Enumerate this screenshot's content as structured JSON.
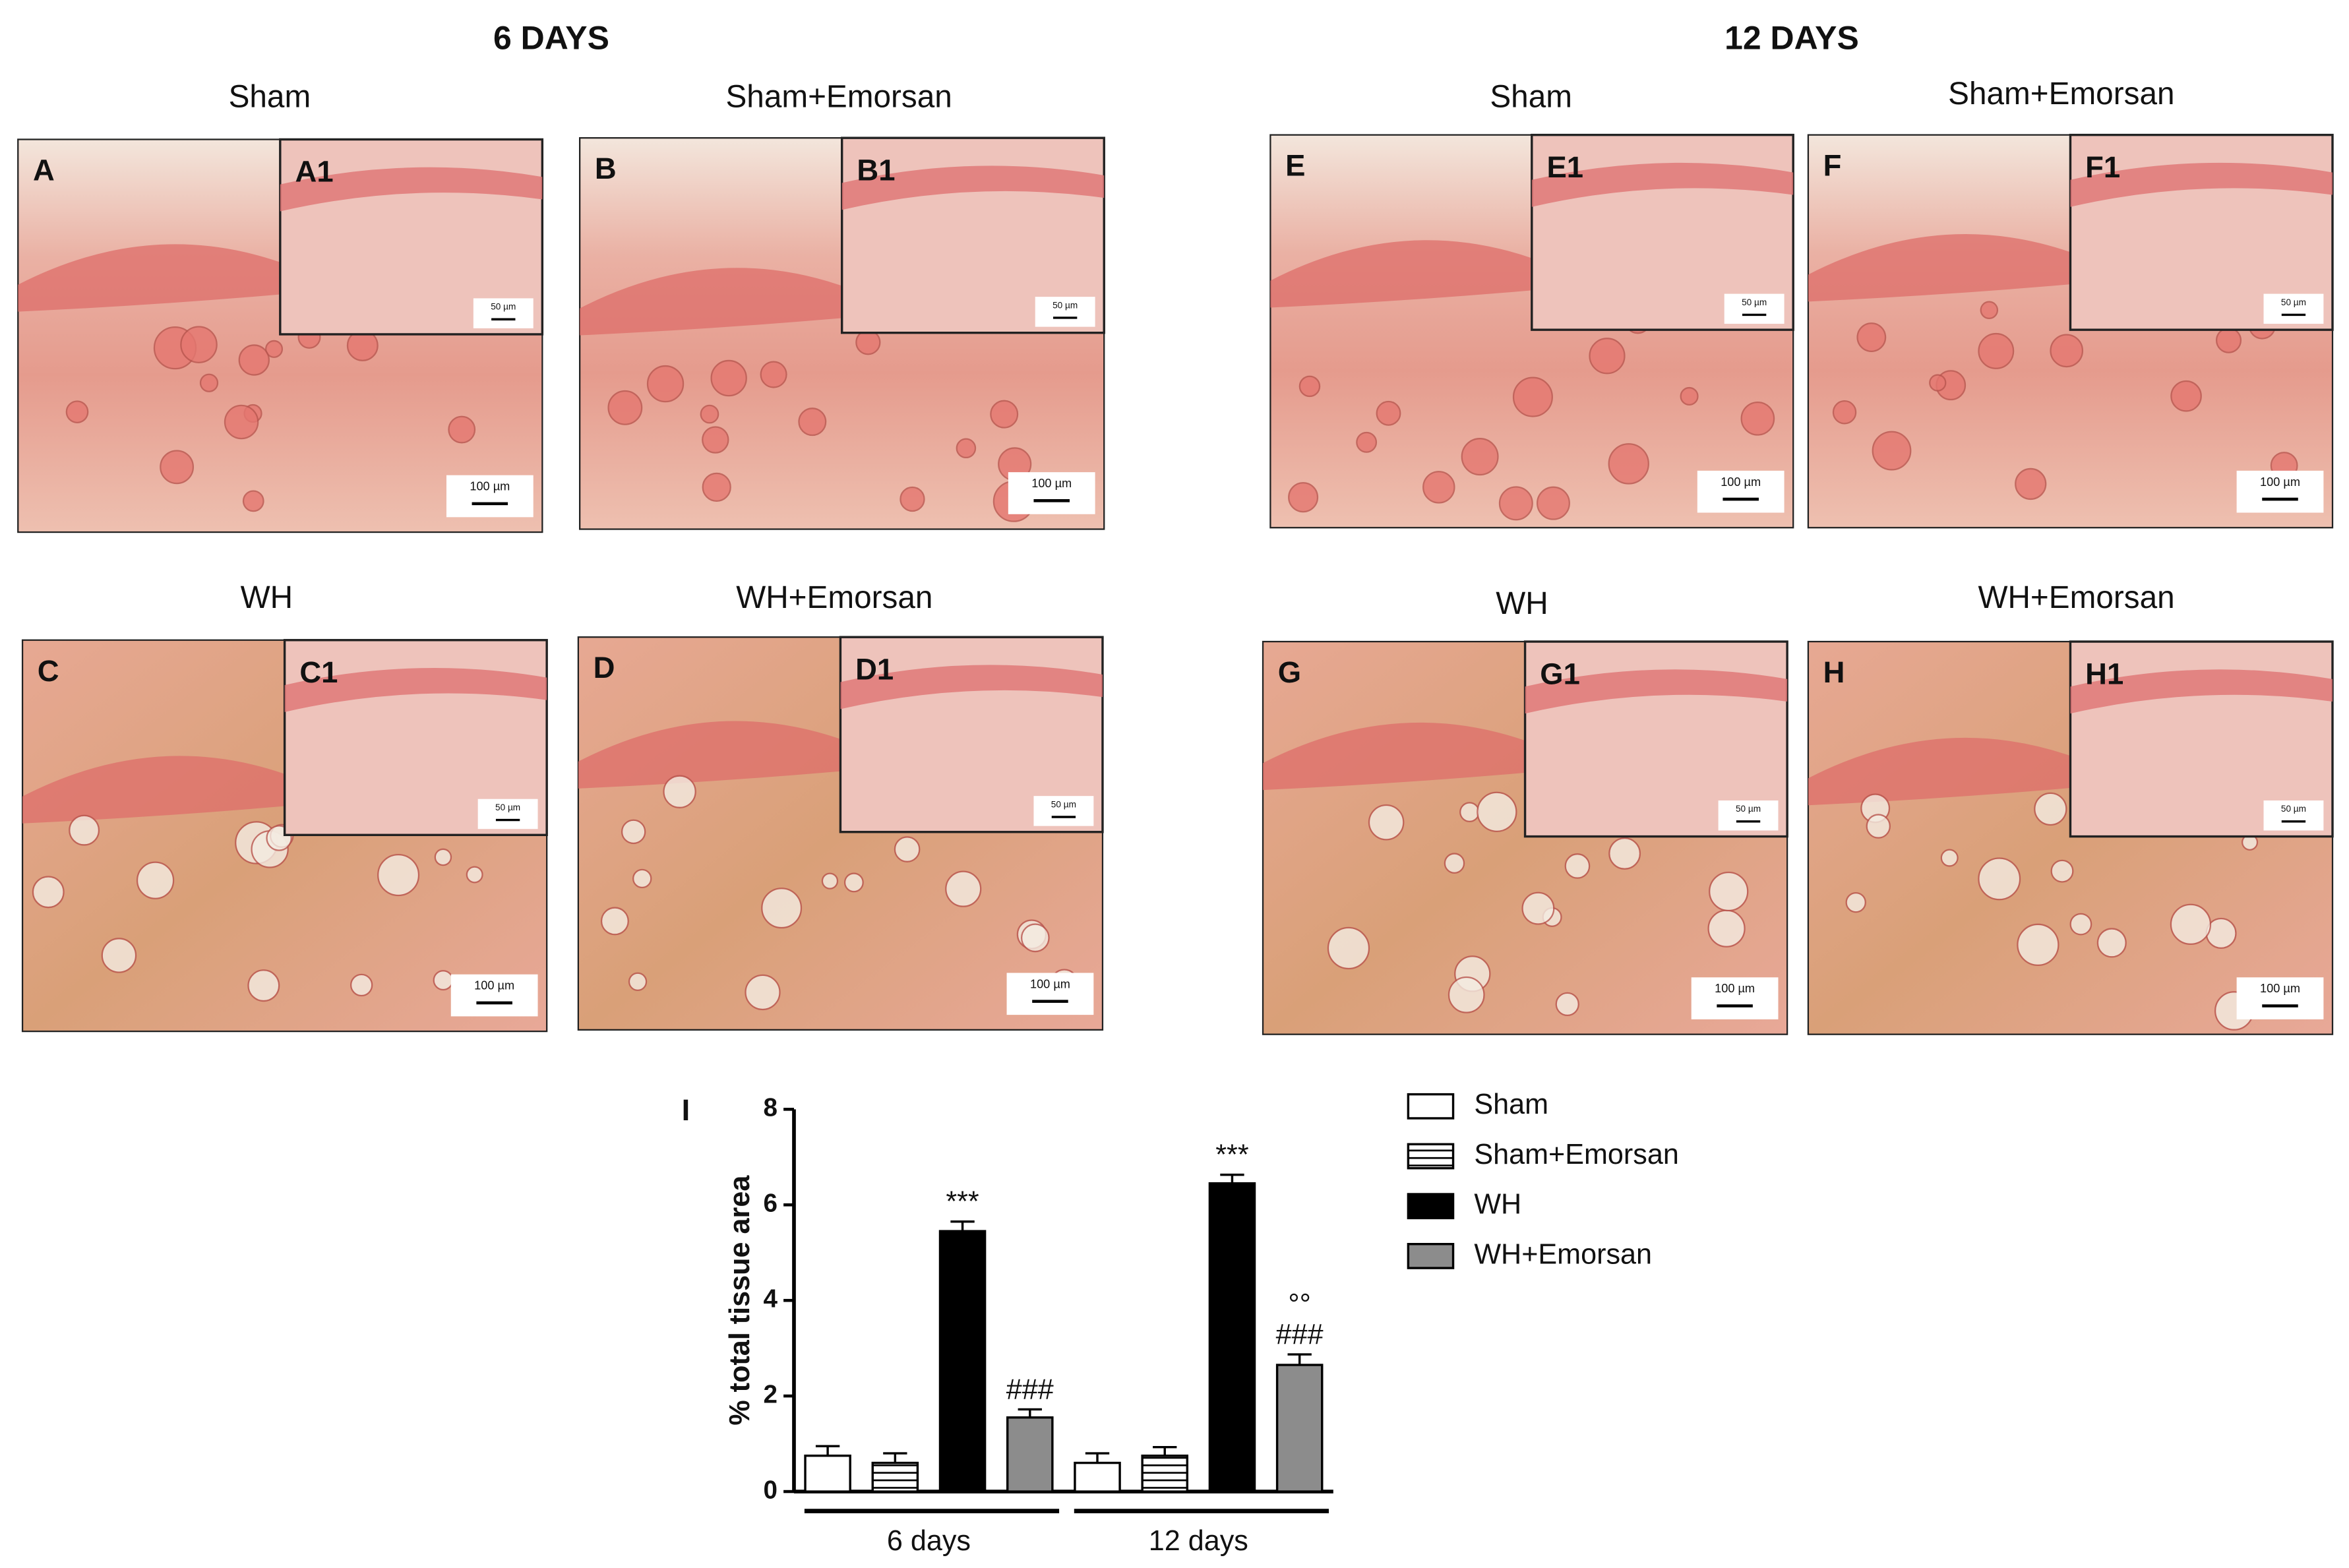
{
  "figure": {
    "titles": [
      "6 DAYS",
      "12 DAYS"
    ],
    "panels": [
      {
        "title": "Sham",
        "label": "A",
        "inset_label": "A1",
        "inset_scale": "50 µm",
        "scale": "100 µm"
      },
      {
        "title": "Sham+Emorsan",
        "label": "B",
        "inset_label": "B1",
        "inset_scale": "50 µm",
        "scale": "100 µm"
      },
      {
        "title": "WH",
        "label": "C",
        "inset_label": "C1",
        "inset_scale": "50 µm",
        "scale": "100 µm"
      },
      {
        "title": "WH+Emorsan",
        "label": "D",
        "inset_label": "D1",
        "inset_scale": "50 µm",
        "scale": "100 µm"
      },
      {
        "title": "Sham",
        "label": "E",
        "inset_label": "E1",
        "inset_scale": "50 µm",
        "scale": "100 µm"
      },
      {
        "title": "Sham+Emorsan",
        "label": "F",
        "inset_label": "F1",
        "inset_scale": "50 µm",
        "scale": "100 µm"
      },
      {
        "title": "WH",
        "label": "G",
        "inset_label": "G1",
        "inset_scale": "50 µm",
        "scale": "100 µm"
      },
      {
        "title": "WH+Emorsan",
        "label": "H",
        "inset_label": "H1",
        "inset_scale": "50 µm",
        "scale": "100 µm"
      }
    ]
  },
  "chart_data": {
    "type": "bar",
    "panel_label": "I",
    "y_label": "% total tissue area",
    "categories": [
      "6 days",
      "12 days"
    ],
    "ylim": [
      0,
      8
    ],
    "yticks": [
      0,
      2,
      4,
      6,
      8
    ],
    "legend": "right",
    "series": [
      {
        "name": "Sham",
        "color": "#ffffff",
        "values": [
          0.75,
          0.6
        ],
        "errors": [
          0.2,
          0.2
        ]
      },
      {
        "name": "Sham+Emorsan",
        "color": "#ffffff",
        "hatch": "horizontal",
        "values": [
          0.6,
          0.75
        ],
        "errors": [
          0.2,
          0.18
        ]
      },
      {
        "name": "WH",
        "color": "#000000",
        "values": [
          5.45,
          6.45
        ],
        "errors": [
          0.2,
          0.18
        ],
        "annotations": [
          [
            "***"
          ],
          [
            "***"
          ]
        ]
      },
      {
        "name": "WH+Emorsan",
        "color": "#8c8c8c",
        "values": [
          1.55,
          2.65
        ],
        "errors": [
          0.17,
          0.22
        ],
        "annotations": [
          [
            "###"
          ],
          [
            "###",
            "°°"
          ]
        ]
      }
    ]
  }
}
